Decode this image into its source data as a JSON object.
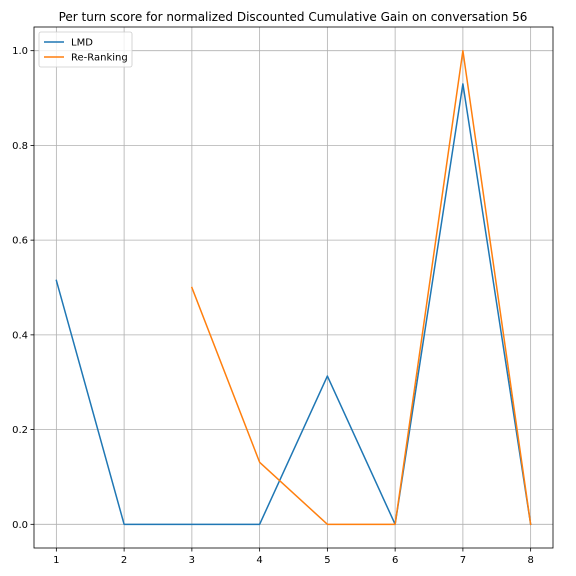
{
  "chart_data": {
    "type": "line",
    "title": "Per turn score for normalized Discounted Cumulative Gain on conversation 56",
    "xlabel": "",
    "ylabel": "",
    "x": [
      1,
      2,
      3,
      4,
      5,
      6,
      7,
      8
    ],
    "xticks": [
      "1",
      "2",
      "3",
      "4",
      "5",
      "6",
      "7",
      "8"
    ],
    "yticks": [
      "0.0",
      "0.2",
      "0.4",
      "0.6",
      "0.8",
      "1.0"
    ],
    "xlim": [
      0.67,
      8.33
    ],
    "ylim": [
      -0.05,
      1.05
    ],
    "grid": true,
    "legend_position": "top-left",
    "series": [
      {
        "name": "LMD",
        "color": "#1f77b4",
        "values": [
          0.515,
          0.0,
          0.0,
          0.0,
          0.313,
          0.0,
          0.93,
          0.0
        ]
      },
      {
        "name": "Re-Ranking",
        "color": "#ff7f0e",
        "values": [
          null,
          null,
          0.5,
          0.131,
          0.0,
          0.0,
          1.0,
          0.0
        ]
      }
    ]
  }
}
